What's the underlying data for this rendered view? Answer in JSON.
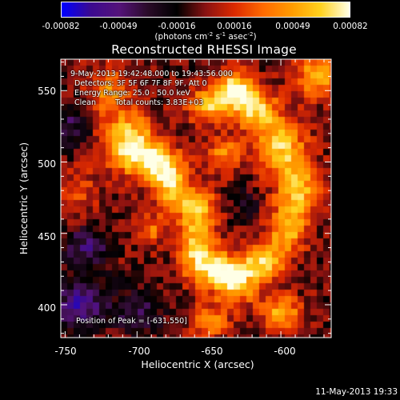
{
  "colorbar": {
    "ticks": [
      "-0.00082",
      "-0.00049",
      "-0.00016",
      "0.00016",
      "0.00049",
      "0.00082"
    ],
    "tick_values": [
      -0.00082,
      -0.00049,
      -0.00016,
      0.00016,
      0.00049,
      0.00082
    ],
    "range": [
      -0.00082,
      0.00082
    ],
    "units_base": "(photons cm",
    "units_exp1": "-2",
    "units_mid": " s",
    "units_exp2": "-1",
    "units_mid2": " asec",
    "units_exp3": "-2",
    "units_end": ")",
    "colors": [
      "#0000ff",
      "#3c0a90",
      "#55137a",
      "#2a0b28",
      "#000000",
      "#8a1212",
      "#dd2a00",
      "#ff6a00",
      "#ff9c00",
      "#ffd21e",
      "#ffffe6"
    ]
  },
  "title": "Reconstructed RHESSI Image",
  "overlay": {
    "line1": "9-May-2013 19:42:48.000 to 19:43:56.000",
    "line2": "Detectors: 3F 5F 6F 7F 8F 9F, Att 0",
    "line3": "Energy Range: 25.0 - 50.0 keV",
    "line4_label": "Clean",
    "line4_value": "Total counts: 3.83E+03",
    "peak": "Position of Peak = [-631,550]"
  },
  "axes": {
    "xlabel": "Heliocentric X (arcsec)",
    "ylabel": "Heliocentric Y (arcsec)",
    "xticks": [
      "-750",
      "-700",
      "-650",
      "-600"
    ],
    "xtick_values": [
      -750,
      -700,
      -650,
      -600
    ],
    "yticks": [
      "400",
      "450",
      "500",
      "550"
    ],
    "ytick_values": [
      400,
      450,
      500,
      550
    ],
    "xlim": [
      -753,
      -565
    ],
    "ylim": [
      377,
      572
    ]
  },
  "chart_data": {
    "type": "heatmap",
    "title": "Reconstructed RHESSI Image",
    "xlabel": "Heliocentric X (arcsec)",
    "ylabel": "Heliocentric Y (arcsec)",
    "xlim": [
      -753,
      -565
    ],
    "ylim": [
      377,
      572
    ],
    "color_scale": "red-temperature with blue negatives",
    "value_range": [
      -0.00082,
      0.00082
    ],
    "peak_position": [
      -631,
      550
    ],
    "sources": [
      {
        "x": -705,
        "y": 513,
        "sx": 12,
        "sy": 14,
        "amp": 1.0
      },
      {
        "x": -688,
        "y": 499,
        "sx": 10,
        "sy": 9,
        "amp": 0.8
      },
      {
        "x": -676,
        "y": 485,
        "sx": 9,
        "sy": 12,
        "amp": 0.85
      },
      {
        "x": -658,
        "y": 468,
        "sx": 9,
        "sy": 9,
        "amp": 0.75
      },
      {
        "x": -660,
        "y": 440,
        "sx": 10,
        "sy": 14,
        "amp": 0.95
      },
      {
        "x": -645,
        "y": 425,
        "sx": 9,
        "sy": 8,
        "amp": 0.8
      },
      {
        "x": -632,
        "y": 415,
        "sx": 10,
        "sy": 10,
        "amp": 0.9
      },
      {
        "x": -613,
        "y": 430,
        "sx": 10,
        "sy": 10,
        "amp": 0.85
      },
      {
        "x": -596,
        "y": 452,
        "sx": 9,
        "sy": 12,
        "amp": 0.7
      },
      {
        "x": -588,
        "y": 480,
        "sx": 10,
        "sy": 14,
        "amp": 0.75
      },
      {
        "x": -600,
        "y": 510,
        "sx": 12,
        "sy": 14,
        "amp": 0.8
      },
      {
        "x": -616,
        "y": 535,
        "sx": 10,
        "sy": 10,
        "amp": 0.8
      },
      {
        "x": -631,
        "y": 550,
        "sx": 9,
        "sy": 9,
        "amp": 1.1
      },
      {
        "x": -650,
        "y": 540,
        "sx": 10,
        "sy": 9,
        "amp": 0.75
      },
      {
        "x": -640,
        "y": 505,
        "sx": 9,
        "sy": 9,
        "amp": 0.55
      },
      {
        "x": -720,
        "y": 548,
        "sx": 10,
        "sy": 12,
        "amp": 0.55
      },
      {
        "x": -740,
        "y": 480,
        "sx": 8,
        "sy": 12,
        "amp": 0.35
      },
      {
        "x": -690,
        "y": 452,
        "sx": 8,
        "sy": 8,
        "amp": 0.45
      },
      {
        "x": -600,
        "y": 395,
        "sx": 10,
        "sy": 8,
        "amp": 0.7
      },
      {
        "x": -650,
        "y": 388,
        "sx": 9,
        "sy": 8,
        "amp": 0.6
      },
      {
        "x": -575,
        "y": 560,
        "sx": 10,
        "sy": 10,
        "amp": 0.75
      },
      {
        "x": -740,
        "y": 400,
        "sx": 12,
        "sy": 12,
        "amp": -0.7
      },
      {
        "x": -735,
        "y": 440,
        "sx": 10,
        "sy": 10,
        "amp": -0.55
      },
      {
        "x": -700,
        "y": 395,
        "sx": 12,
        "sy": 10,
        "amp": -0.45
      },
      {
        "x": -745,
        "y": 525,
        "sx": 8,
        "sy": 12,
        "amp": -0.4
      },
      {
        "x": -672,
        "y": 440,
        "sx": 8,
        "sy": 10,
        "amp": -0.3
      },
      {
        "x": -625,
        "y": 470,
        "sx": 8,
        "sy": 10,
        "amp": -0.2
      }
    ]
  },
  "timestamp": "11-May-2013 19:33"
}
